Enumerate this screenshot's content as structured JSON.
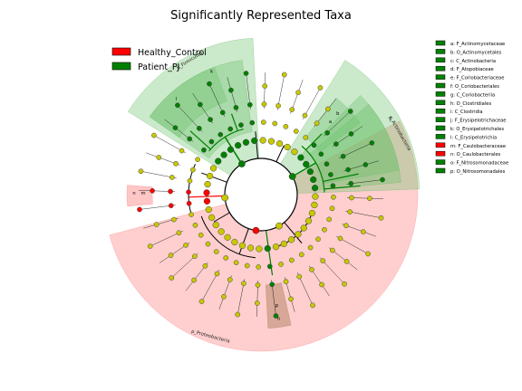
{
  "chart_data": {
    "type": "cladogram",
    "title": "Significantly Represented Taxa",
    "legend_classes": [
      {
        "name": "Healthy_Control",
        "color": "#ff0000"
      },
      {
        "name": "Patient_PJ",
        "color": "#008000"
      }
    ],
    "taxa_legend": [
      {
        "key": "a",
        "name": "a: F_Actinomycetaceae",
        "class": "Patient_PJ"
      },
      {
        "key": "b",
        "name": "b: O_Actinomycetales",
        "class": "Patient_PJ"
      },
      {
        "key": "c",
        "name": "c: C_Actinobacteria",
        "class": "Patient_PJ"
      },
      {
        "key": "d",
        "name": "d: F_Atopobiaceae",
        "class": "Patient_PJ"
      },
      {
        "key": "e",
        "name": "e: F_Coriobacteriaceae",
        "class": "Patient_PJ"
      },
      {
        "key": "f",
        "name": "f: O_Coriobacteriales",
        "class": "Patient_PJ"
      },
      {
        "key": "g",
        "name": "g: C_Coriobacteriia",
        "class": "Patient_PJ"
      },
      {
        "key": "h",
        "name": "h: O_Clostridiales",
        "class": "Patient_PJ"
      },
      {
        "key": "i",
        "name": "i: C_Clostridia",
        "class": "Patient_PJ"
      },
      {
        "key": "j",
        "name": "j: F_Erysipelotrichaceae",
        "class": "Patient_PJ"
      },
      {
        "key": "k",
        "name": "k: O_Erysipelotrichales",
        "class": "Patient_PJ"
      },
      {
        "key": "l",
        "name": "l: C_Erysipelotrichia",
        "class": "Patient_PJ"
      },
      {
        "key": "m",
        "name": "m: F_Caulobacteraceae",
        "class": "Healthy_Control"
      },
      {
        "key": "n",
        "name": "n: O_Caulobacterales",
        "class": "Healthy_Control"
      },
      {
        "key": "o",
        "name": "o: F_Nitrosomonadaceae",
        "class": "Patient_PJ"
      },
      {
        "key": "p",
        "name": "p: O_Nitrosomonadales",
        "class": "Patient_PJ"
      }
    ],
    "phylum_labels": {
      "firmicutes": "p_Firmicutes",
      "actinobacteria": "p_Actinobacteria",
      "proteobacteria": "p_Proteobacteria"
    },
    "colors": {
      "patient": "#008000",
      "healthy": "#ff0000",
      "neutral": "#c8c800",
      "shade_green": "#6abf69",
      "shade_red": "#ff8080",
      "shade_brown": "#b08060"
    }
  }
}
